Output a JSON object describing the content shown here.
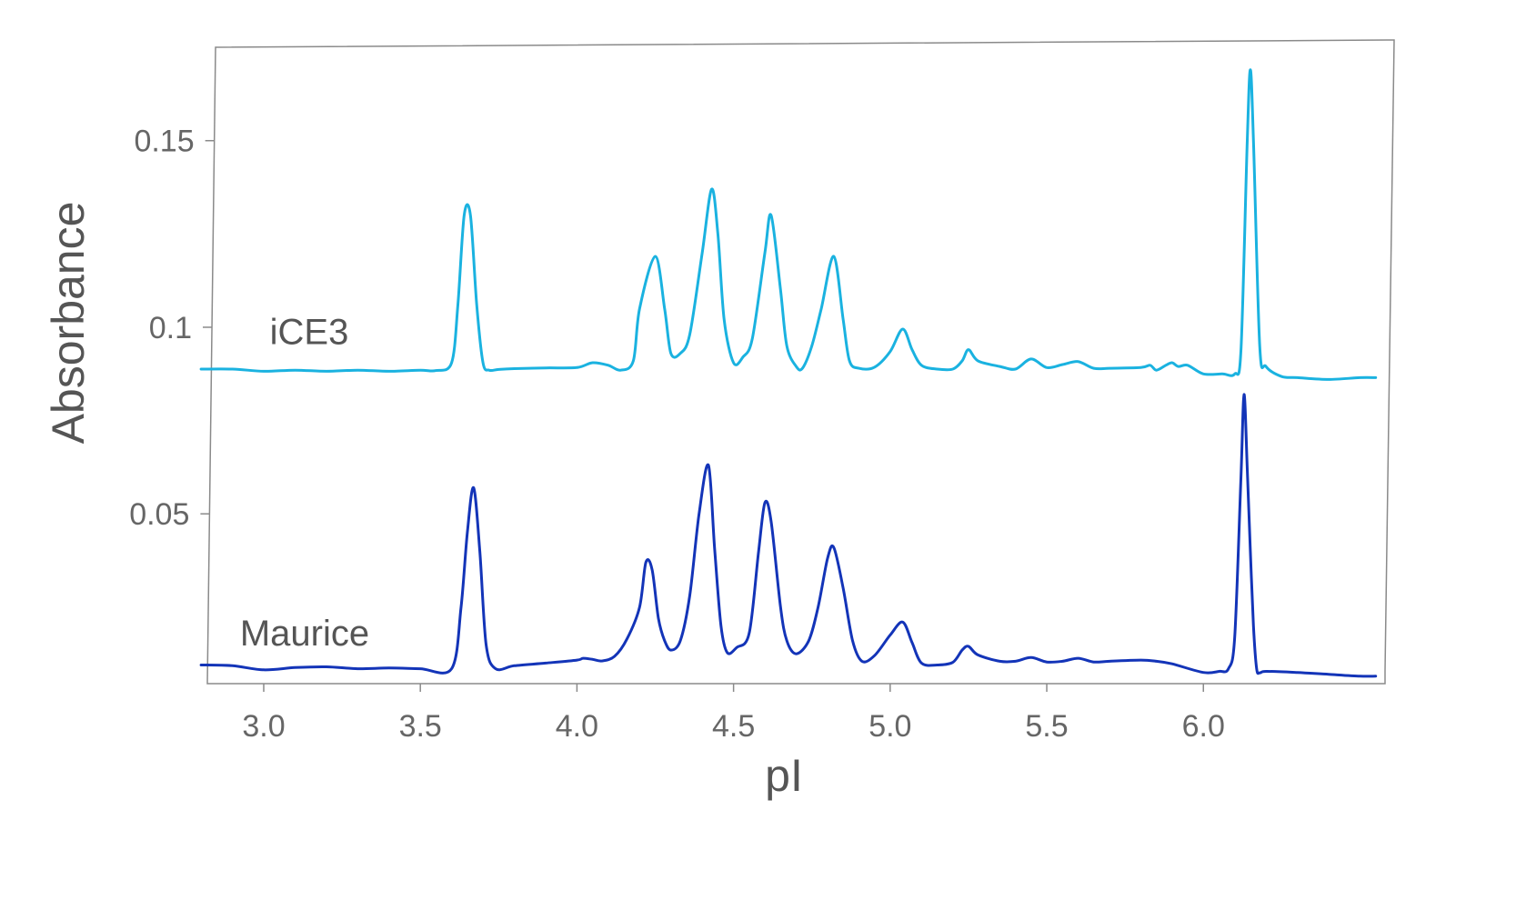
{
  "chart_data": {
    "type": "line",
    "title": "",
    "xlabel": "pI",
    "ylabel": "Absorbance",
    "xlim": [
      2.82,
      6.58
    ],
    "ylim": [
      0.0045,
      0.176
    ],
    "x_ticks": [
      {
        "value": 3.0,
        "label": "3.0"
      },
      {
        "value": 3.5,
        "label": "3.5"
      },
      {
        "value": 4.0,
        "label": "4.0"
      },
      {
        "value": 4.5,
        "label": "4.5"
      },
      {
        "value": 5.0,
        "label": "5.0"
      },
      {
        "value": 5.5,
        "label": "5.5"
      },
      {
        "value": 6.0,
        "label": "6.0"
      }
    ],
    "y_ticks": [
      {
        "value": 0.05,
        "label": "0.05"
      },
      {
        "value": 0.1,
        "label": "0.1"
      },
      {
        "value": 0.15,
        "label": "0.15"
      }
    ],
    "grid": false,
    "legend": "none",
    "series": [
      {
        "name": "iCE3",
        "color": "#1ab2e0",
        "label_at": [
          2.84,
          0.0955
        ],
        "x": [
          2.8,
          2.9,
          3.0,
          3.1,
          3.2,
          3.3,
          3.4,
          3.5,
          3.55,
          3.6,
          3.62,
          3.64,
          3.66,
          3.68,
          3.7,
          3.72,
          3.75,
          3.8,
          3.9,
          4.0,
          4.05,
          4.1,
          4.14,
          4.18,
          4.2,
          4.25,
          4.28,
          4.3,
          4.33,
          4.36,
          4.4,
          4.43,
          4.45,
          4.47,
          4.5,
          4.53,
          4.56,
          4.6,
          4.62,
          4.65,
          4.67,
          4.7,
          4.72,
          4.75,
          4.78,
          4.82,
          4.85,
          4.87,
          4.9,
          4.95,
          5.0,
          5.04,
          5.07,
          5.1,
          5.15,
          5.2,
          5.23,
          5.25,
          5.28,
          5.35,
          5.4,
          5.45,
          5.5,
          5.55,
          5.6,
          5.65,
          5.7,
          5.8,
          5.83,
          5.85,
          5.88,
          5.9,
          5.92,
          5.95,
          6.0,
          6.06,
          6.1,
          6.12,
          6.14,
          6.15,
          6.16,
          6.18,
          6.2,
          6.25,
          6.3,
          6.4,
          6.5,
          6.55
        ],
        "y": [
          0.0888,
          0.0888,
          0.0882,
          0.0885,
          0.0882,
          0.0885,
          0.0882,
          0.0885,
          0.0884,
          0.0905,
          0.106,
          0.13,
          0.13,
          0.106,
          0.0905,
          0.0885,
          0.0887,
          0.0889,
          0.0891,
          0.0892,
          0.0905,
          0.0898,
          0.0885,
          0.091,
          0.105,
          0.119,
          0.105,
          0.093,
          0.093,
          0.098,
          0.12,
          0.137,
          0.125,
          0.102,
          0.0905,
          0.092,
          0.097,
          0.12,
          0.13,
          0.11,
          0.095,
          0.0895,
          0.089,
          0.095,
          0.105,
          0.119,
          0.102,
          0.091,
          0.089,
          0.0893,
          0.0935,
          0.0995,
          0.094,
          0.0898,
          0.0888,
          0.0888,
          0.091,
          0.094,
          0.091,
          0.0895,
          0.0888,
          0.0915,
          0.0892,
          0.09,
          0.0908,
          0.089,
          0.089,
          0.0892,
          0.0898,
          0.0885,
          0.0898,
          0.0905,
          0.0895,
          0.0898,
          0.0875,
          0.0875,
          0.0875,
          0.094,
          0.15,
          0.169,
          0.15,
          0.095,
          0.0895,
          0.0868,
          0.0865,
          0.086,
          0.0865,
          0.0865
        ]
      },
      {
        "name": "Maurice",
        "color": "#1334b8",
        "label_at": [
          2.84,
          0.0147
        ],
        "x": [
          2.8,
          2.9,
          3.0,
          3.1,
          3.2,
          3.3,
          3.4,
          3.5,
          3.6,
          3.63,
          3.65,
          3.67,
          3.69,
          3.71,
          3.74,
          3.8,
          3.9,
          4.0,
          4.02,
          4.05,
          4.08,
          4.12,
          4.16,
          4.2,
          4.22,
          4.24,
          4.26,
          4.28,
          4.3,
          4.33,
          4.36,
          4.39,
          4.42,
          4.44,
          4.46,
          4.48,
          4.51,
          4.55,
          4.58,
          4.6,
          4.62,
          4.65,
          4.67,
          4.7,
          4.74,
          4.77,
          4.8,
          4.82,
          4.85,
          4.88,
          4.91,
          4.95,
          5.0,
          5.04,
          5.07,
          5.1,
          5.15,
          5.2,
          5.23,
          5.25,
          5.28,
          5.35,
          5.4,
          5.45,
          5.5,
          5.55,
          5.6,
          5.65,
          5.7,
          5.8,
          5.85,
          5.9,
          6.0,
          6.05,
          6.08,
          6.1,
          6.12,
          6.13,
          6.14,
          6.15,
          6.16,
          6.17,
          6.18,
          6.2,
          6.3,
          6.4,
          6.5,
          6.55
        ],
        "y": [
          0.0095,
          0.0093,
          0.0082,
          0.0088,
          0.009,
          0.0085,
          0.0087,
          0.0085,
          0.0085,
          0.025,
          0.045,
          0.057,
          0.04,
          0.015,
          0.0085,
          0.0093,
          0.01,
          0.0108,
          0.0113,
          0.011,
          0.0106,
          0.0118,
          0.0165,
          0.025,
          0.037,
          0.035,
          0.022,
          0.016,
          0.0135,
          0.016,
          0.028,
          0.05,
          0.063,
          0.04,
          0.02,
          0.0128,
          0.0142,
          0.018,
          0.04,
          0.053,
          0.048,
          0.025,
          0.016,
          0.0125,
          0.016,
          0.025,
          0.038,
          0.041,
          0.03,
          0.016,
          0.0105,
          0.012,
          0.0175,
          0.021,
          0.0155,
          0.01,
          0.0095,
          0.0102,
          0.0135,
          0.0145,
          0.0122,
          0.0105,
          0.0105,
          0.0115,
          0.0103,
          0.0105,
          0.0113,
          0.0103,
          0.0105,
          0.0108,
          0.0105,
          0.0098,
          0.0075,
          0.0078,
          0.0085,
          0.017,
          0.06,
          0.082,
          0.062,
          0.04,
          0.02,
          0.0085,
          0.0074,
          0.0078,
          0.0075,
          0.007,
          0.0065,
          0.0065
        ]
      }
    ]
  }
}
